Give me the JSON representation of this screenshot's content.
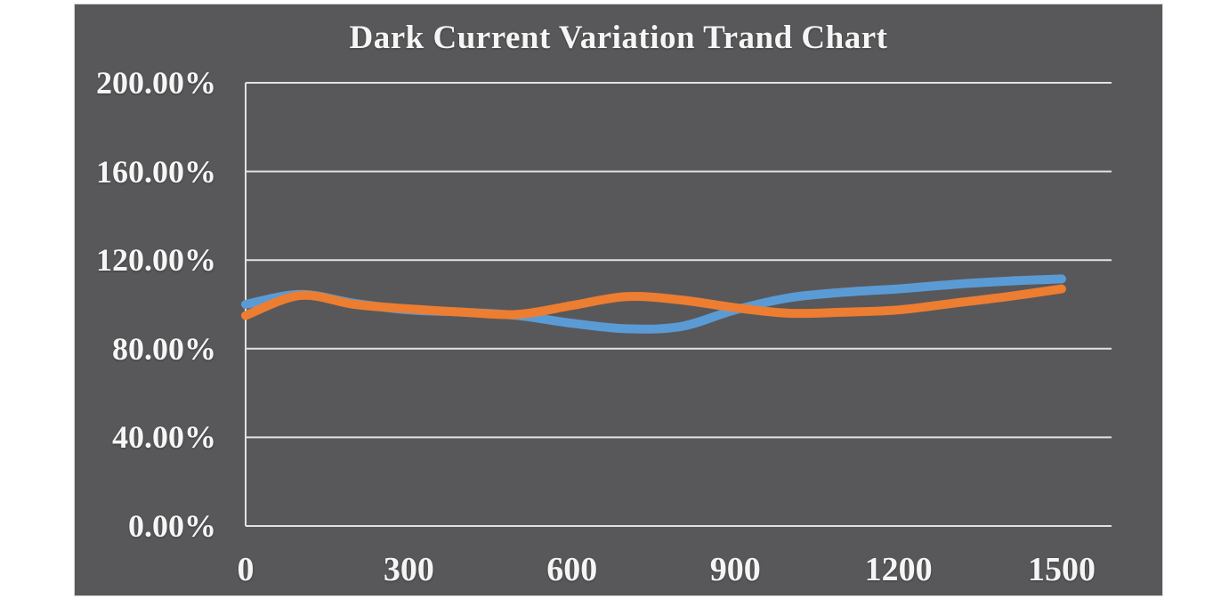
{
  "chart_data": {
    "type": "line",
    "title": "Dark Current Variation Trand Chart",
    "x": [
      0,
      100,
      200,
      300,
      400,
      500,
      600,
      700,
      800,
      900,
      1000,
      1100,
      1200,
      1300,
      1400,
      1500
    ],
    "series": [
      {
        "name": "series-blue",
        "color": "#5B9BD5",
        "values": [
          100,
          104.5,
          100.5,
          97.5,
          96.5,
          95,
          91.5,
          89,
          90,
          97.5,
          103,
          105.5,
          107,
          109,
          110.5,
          111.5
        ]
      },
      {
        "name": "series-orange",
        "color": "#ED7D31",
        "values": [
          95,
          104,
          100,
          98,
          96.5,
          95.5,
          99.5,
          103.5,
          102,
          98.5,
          96,
          96.5,
          97.5,
          100.5,
          103.5,
          107
        ]
      }
    ],
    "x_tick_values": [
      0,
      300,
      600,
      900,
      1200,
      1500
    ],
    "x_tick_labels": [
      "0",
      "300",
      "600",
      "900",
      "1200",
      "1500"
    ],
    "y_tick_values": [
      200,
      160,
      120,
      80,
      40,
      0
    ],
    "y_tick_labels": [
      "200.00%",
      "160.00%",
      "120.00%",
      "80.00%",
      "40.00%",
      "0.00%"
    ],
    "ylim": [
      0,
      200
    ],
    "xlim": [
      0,
      1590
    ],
    "x_data_max": 1500,
    "grid": true,
    "legend": false,
    "smooth_lines": true,
    "xlabel": "",
    "ylabel": "",
    "colors": {
      "plot_background": "#58585a",
      "page_background": "#ffffff",
      "text": "#f5f5f5",
      "gridline": "#e2e2e2"
    }
  }
}
